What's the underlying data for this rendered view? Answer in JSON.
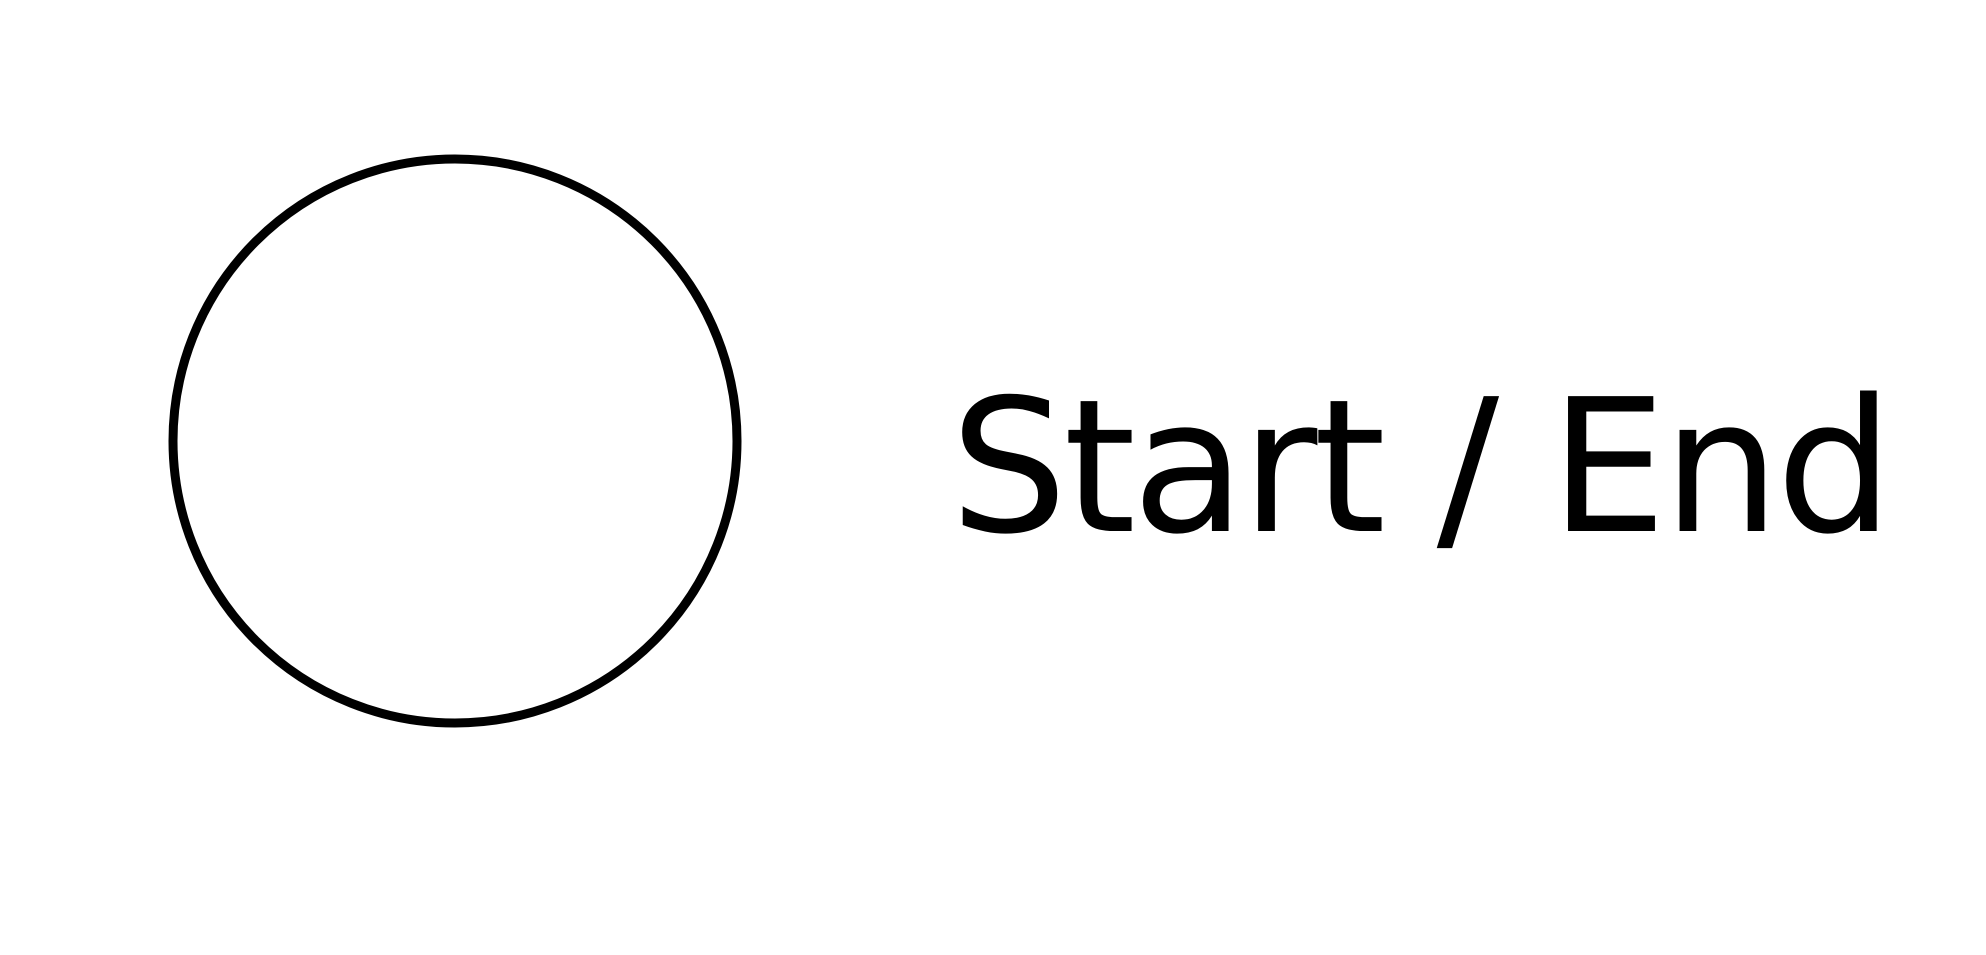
{
  "legend": {
    "symbol": "circle",
    "label": "Start / End",
    "stroke_color": "#000000",
    "fill_color": "#ffffff",
    "text_color": "#000000"
  }
}
